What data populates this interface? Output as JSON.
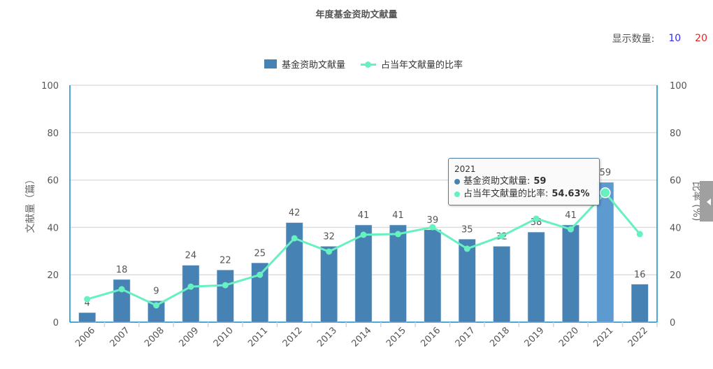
{
  "title": "年度基金资助文献量",
  "display_count": {
    "label": "显示数量:",
    "options": [
      "10",
      "20"
    ],
    "colors": [
      "#2b2bff",
      "#e32222"
    ]
  },
  "legend": {
    "bar_label": "基金资助文献量",
    "line_label": "占当年文献量的比率"
  },
  "tooltip": {
    "year": "2021",
    "bar_label": "基金资助文献量:",
    "bar_value": "59",
    "line_label": "占当年文献量的比率:",
    "line_value": "54.63%"
  },
  "colors": {
    "bar": "#4682b4",
    "bar_highlight": "#5d9ad0",
    "line": "#67f0c0",
    "axis": "#0e8bc9",
    "grid": "#dddddd"
  },
  "chart_data": {
    "type": "bar+line",
    "title": "年度基金资助文献量",
    "categories": [
      "2006",
      "2007",
      "2008",
      "2009",
      "2010",
      "2011",
      "2012",
      "2013",
      "2014",
      "2015",
      "2016",
      "2017",
      "2018",
      "2019",
      "2020",
      "2021",
      "2022"
    ],
    "series": [
      {
        "name": "基金资助文献量",
        "type": "bar",
        "axis": "left",
        "values": [
          4,
          18,
          9,
          24,
          22,
          25,
          42,
          32,
          41,
          41,
          39,
          35,
          32,
          38,
          41,
          59,
          16
        ]
      },
      {
        "name": "占当年文献量的比率",
        "type": "line",
        "axis": "right",
        "values": [
          9.7,
          13.9,
          7.1,
          15.0,
          15.6,
          20.0,
          35.4,
          29.8,
          36.9,
          37.2,
          40.1,
          31.0,
          36.3,
          43.7,
          39.2,
          54.63,
          37.2
        ]
      }
    ],
    "ylabel": "文献量（篇）",
    "y2label": "比率 (%)",
    "ylim": [
      0,
      100
    ],
    "y2lim": [
      0,
      100
    ],
    "yticks": [
      0,
      20,
      40,
      60,
      80,
      100
    ],
    "grid": true,
    "legend_position": "top",
    "highlighted_category": "2021"
  }
}
